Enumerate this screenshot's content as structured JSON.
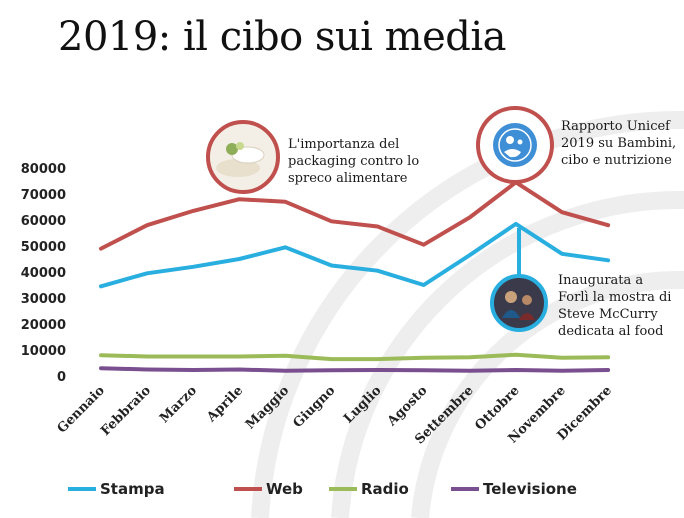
{
  "slide": {
    "title": "2019: il cibo sui media"
  },
  "colors": {
    "Stampa": "#29aee0",
    "Web": "#c0504d",
    "Radio": "#9bbb59",
    "Televisione": "#7a4f8f",
    "annotation_ring": "#c0504d",
    "annotation_ring_blue": "#29aee0"
  },
  "icons": [
    "food-packaging-photo-icon",
    "unicef-logo-icon",
    "mccurry-photo-icon"
  ],
  "annotations": [
    {
      "text": [
        "L'importanza del",
        "packaging contro lo",
        "spreco alimentare"
      ]
    },
    {
      "text": [
        "Rapporto Unicef",
        "2019 su Bambini,",
        "cibo e nutrizione"
      ]
    },
    {
      "text": [
        "Inaugurata a",
        "Forlì la mostra di",
        "Steve McCurry",
        "dedicata al food"
      ]
    }
  ],
  "chart_data": {
    "type": "line",
    "title": "",
    "xlabel": "",
    "ylabel": "",
    "categories": [
      "Gennaio",
      "Febbraio",
      "Marzo",
      "Aprile",
      "Maggio",
      "Giugno",
      "Luglio",
      "Agosto",
      "Settembre",
      "Ottobre",
      "Novembre",
      "Dicembre"
    ],
    "ylim": [
      0,
      80000
    ],
    "yticks": [
      0,
      10000,
      20000,
      30000,
      40000,
      50000,
      60000,
      70000,
      80000
    ],
    "grid": false,
    "legend_position": "bottom",
    "series": [
      {
        "name": "Stampa",
        "values": [
          34500,
          39500,
          42000,
          45000,
          49500,
          42500,
          40500,
          35000,
          46500,
          58500,
          47000,
          44500
        ]
      },
      {
        "name": "Web",
        "values": [
          49000,
          58000,
          63500,
          68000,
          67000,
          59500,
          57500,
          50500,
          61000,
          74500,
          63000,
          58000
        ]
      },
      {
        "name": "Radio",
        "values": [
          8000,
          7500,
          7500,
          7500,
          7800,
          6500,
          6500,
          7000,
          7200,
          8200,
          7000,
          7200
        ]
      },
      {
        "name": "Televisione",
        "values": [
          3000,
          2500,
          2300,
          2500,
          2000,
          2200,
          2300,
          2200,
          2000,
          2300,
          2000,
          2300
        ]
      }
    ]
  }
}
